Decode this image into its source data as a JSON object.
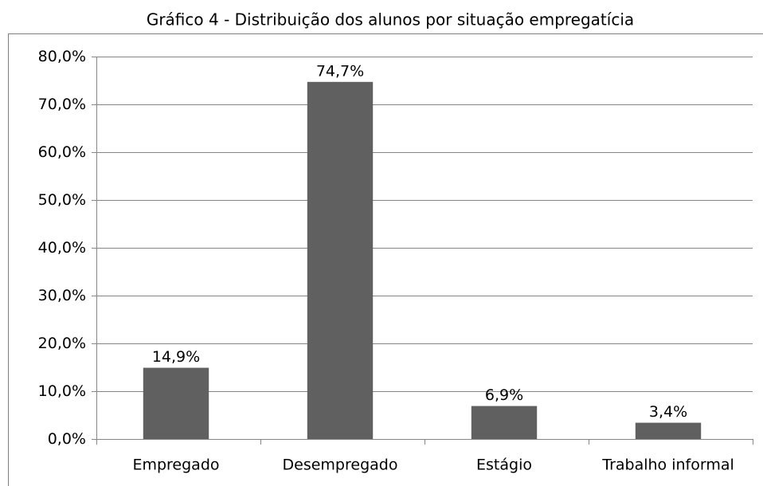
{
  "chart_data": {
    "type": "bar",
    "title": "Gráfico 4 - Distribuição dos alunos por situação empregatícia",
    "categories": [
      "Empregado",
      "Desempregado",
      "Estágio",
      "Trabalho informal"
    ],
    "values": [
      14.9,
      74.7,
      6.9,
      3.4
    ],
    "value_labels": [
      "14,9%",
      "74,7%",
      "6,9%",
      "3,4%"
    ],
    "color": "#606060",
    "ylim": [
      0,
      80
    ],
    "yticks": [
      {
        "value": 0,
        "label": "0,0%"
      },
      {
        "value": 10,
        "label": "10,0%"
      },
      {
        "value": 20,
        "label": "20,0%"
      },
      {
        "value": 30,
        "label": "30,0%"
      },
      {
        "value": 40,
        "label": "40,0%"
      },
      {
        "value": 50,
        "label": "50,0%"
      },
      {
        "value": 60,
        "label": "60,0%"
      },
      {
        "value": 70,
        "label": "70,0%"
      },
      {
        "value": 80,
        "label": "80,0%"
      }
    ],
    "grid": true
  }
}
